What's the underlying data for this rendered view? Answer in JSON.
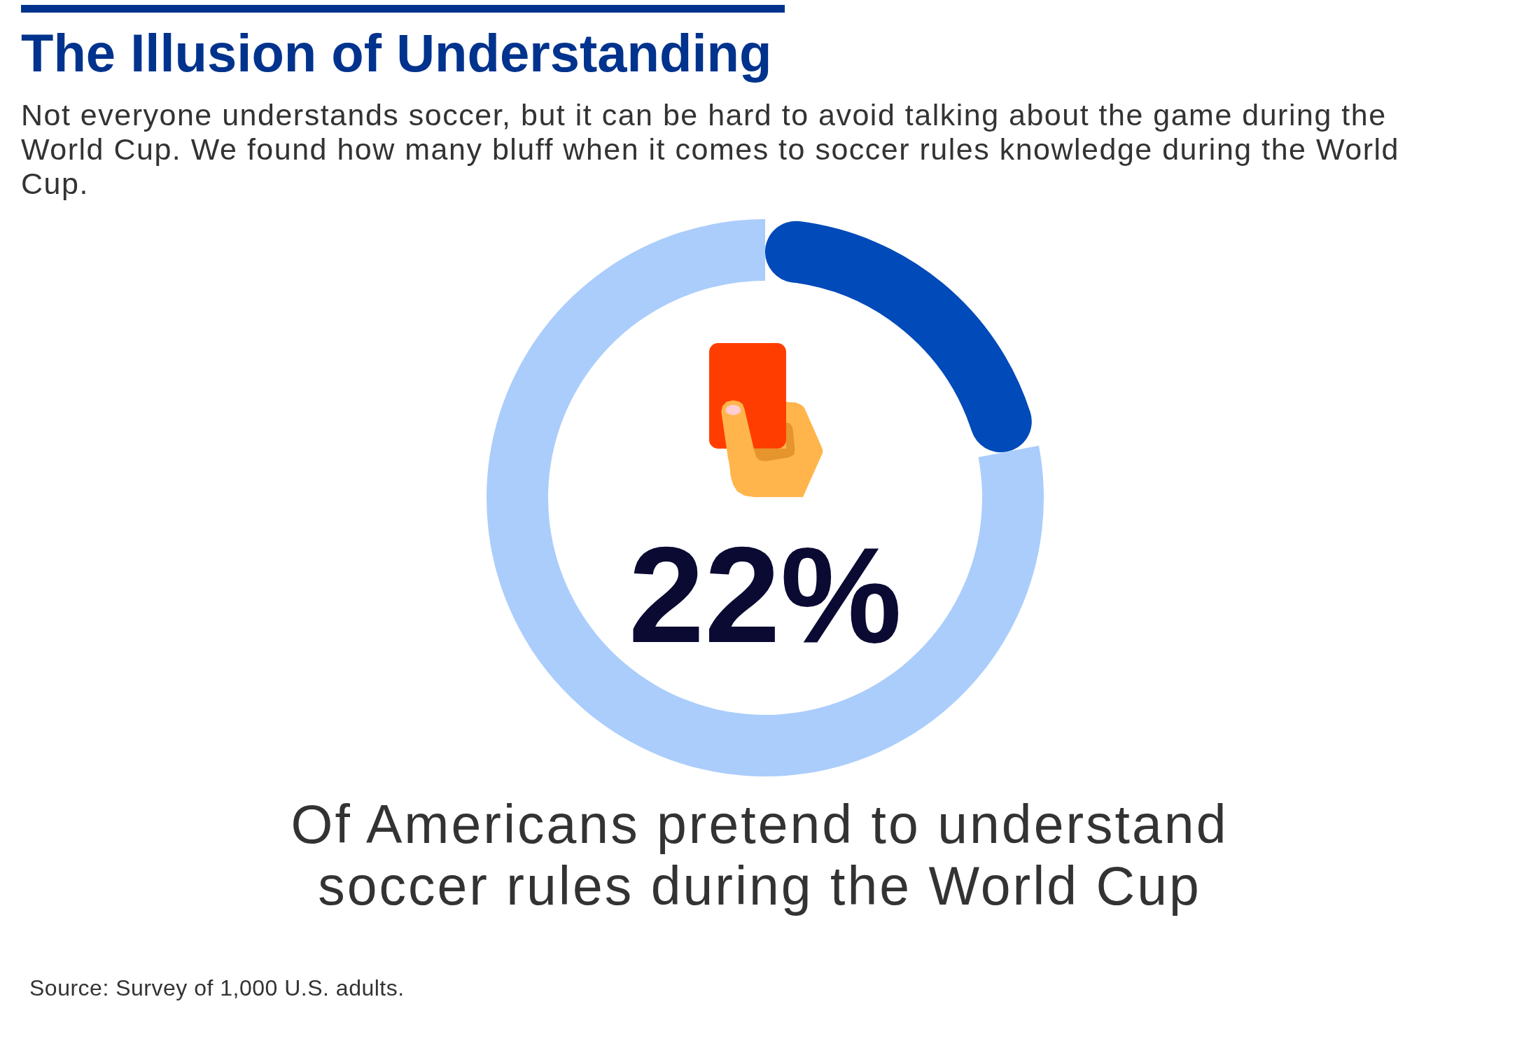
{
  "chart_data": {
    "type": "donut",
    "title": "The Illusion of Understanding",
    "subtitle": "Not everyone understands soccer, but it can be hard to avoid talking about the game during the World Cup. We found how many bluff when it comes to soccer rules knowledge during the World Cup.",
    "categories": [
      null,
      null
    ],
    "values": [
      22,
      78
    ],
    "colors": [
      "#004ab9",
      "#abcdfc"
    ],
    "annotations": [
      "22%",
      "Of Americans pretend to understand soccer rules during the World Cup",
      "Source: Survey of 1,000 U.S. adults."
    ]
  }
}
